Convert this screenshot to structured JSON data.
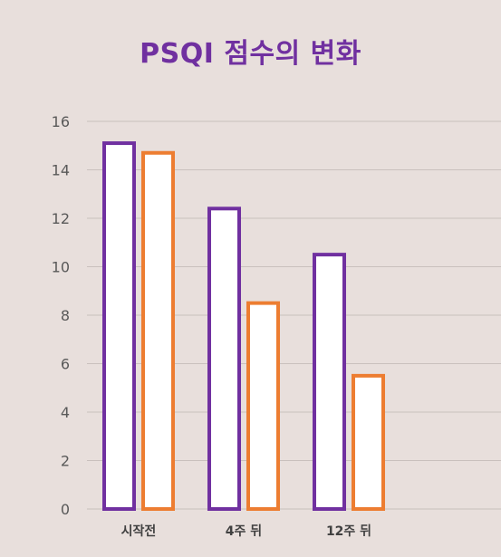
{
  "chart_data": {
    "type": "bar",
    "title": "PSQI 점수의 변화",
    "categories": [
      "시작전",
      "4주 뒤",
      "12주 뒤"
    ],
    "series": [
      {
        "values": [
          15.1,
          12.4,
          10.5
        ],
        "color": "#7030a0"
      },
      {
        "values": [
          14.7,
          8.5,
          5.5
        ],
        "color": "#ed7d31"
      }
    ],
    "ylim": [
      0,
      16
    ],
    "yticks": [
      0,
      2,
      4,
      6,
      8,
      10,
      12,
      14,
      16
    ],
    "grid": true,
    "legend": "none",
    "bar_fill": "#ffffff",
    "gridline_color": "#c9c0bd"
  }
}
